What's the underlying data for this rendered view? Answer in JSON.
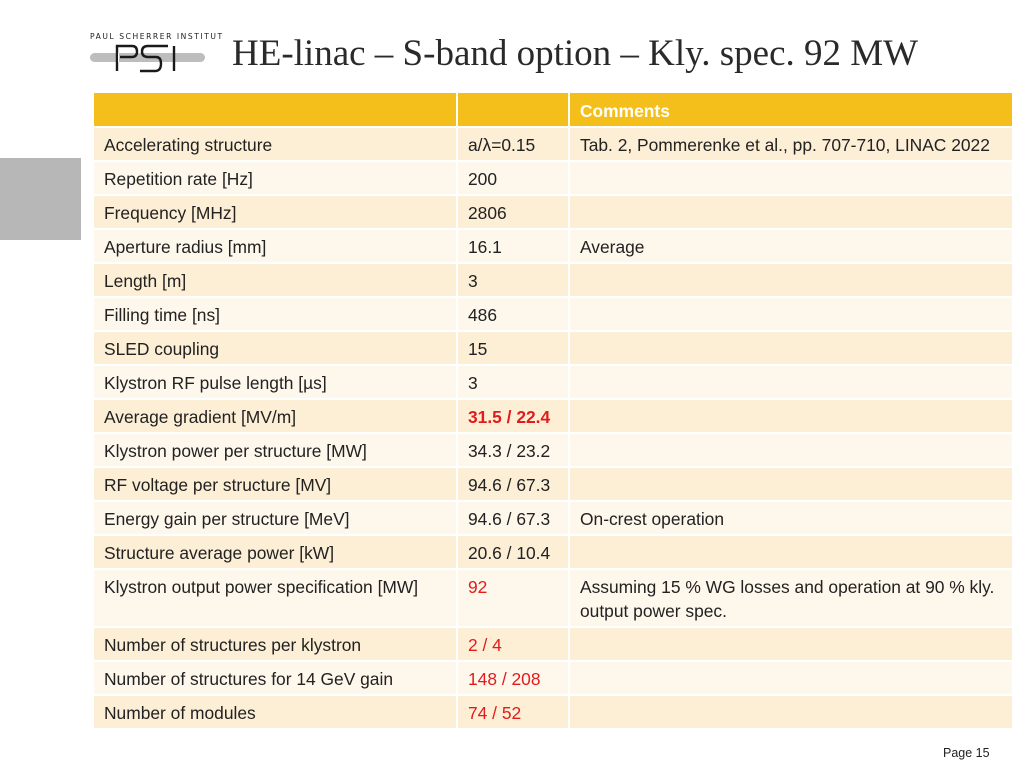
{
  "logo": {
    "institute_name": "PAUL SCHERRER INSTITUT",
    "mark": "PSI"
  },
  "title": "HE-linac – S-band option – Kly. spec. 92 MW",
  "table": {
    "header": [
      "",
      "",
      "Comments"
    ],
    "rows": [
      [
        "Accelerating structure",
        "a/λ=0.15",
        "Tab. 2, Pommerenke et al., pp. 707-710, LINAC 2022"
      ],
      [
        "Repetition rate [Hz]",
        "200",
        ""
      ],
      [
        "Frequency [MHz]",
        "2806",
        ""
      ],
      [
        "Aperture radius [mm]",
        "16.1",
        "Average"
      ],
      [
        "Length [m]",
        "3",
        ""
      ],
      [
        "Filling time [ns]",
        "486",
        ""
      ],
      [
        "SLED coupling",
        "15",
        ""
      ],
      [
        "Klystron RF pulse length [µs]",
        "3",
        ""
      ],
      [
        "Average gradient [MV/m]",
        "31.5 / 22.4",
        ""
      ],
      [
        "Klystron power per structure [MW]",
        "34.3 / 23.2",
        ""
      ],
      [
        "RF voltage per structure [MV]",
        "94.6 / 67.3",
        ""
      ],
      [
        "Energy gain per structure [MeV]",
        "94.6 / 67.3",
        "On-crest operation"
      ],
      [
        "Structure average power [kW]",
        "20.6 / 10.4",
        ""
      ],
      [
        "Klystron output power specification [MW]",
        "92",
        "Assuming 15 % WG losses and operation at 90 % kly. output power spec."
      ],
      [
        "Number of structures per klystron",
        "2 / 4",
        ""
      ],
      [
        "Number of structures for 14 GeV gain",
        "148 / 208",
        ""
      ],
      [
        "Number of modules",
        "74 / 52",
        ""
      ]
    ]
  },
  "page_label": "Page 15",
  "colors": {
    "header": "#f5bf1b",
    "row_odd": "#fdeed6",
    "row_even": "#fef7ec",
    "highlight": "#e31b1b"
  }
}
